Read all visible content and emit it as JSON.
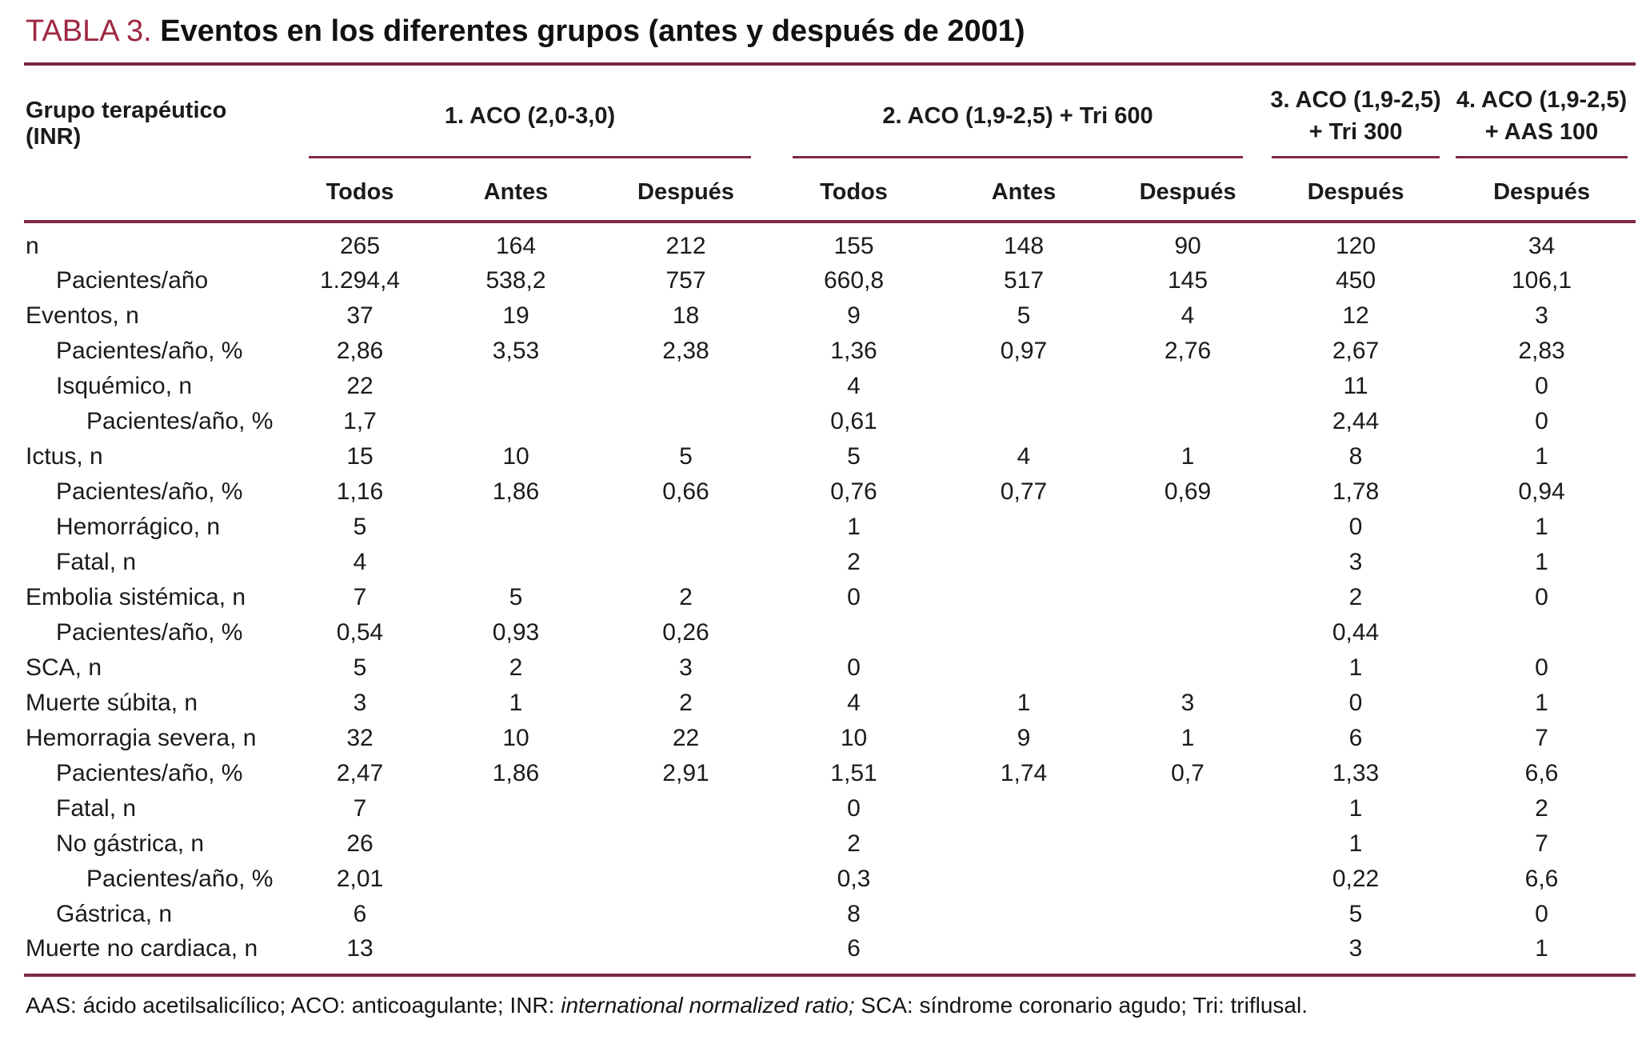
{
  "title": {
    "tag": "TABLA 3.",
    "text": "Eventos en los diferentes grupos (antes y después de 2001)"
  },
  "table": {
    "row_header": "Grupo terapéutico (INR)",
    "groups": [
      {
        "line1": "1. ACO (2,0-3,0)",
        "line2": "",
        "cols": [
          "Todos",
          "Antes",
          "Después"
        ]
      },
      {
        "line1": "2. ACO (1,9-2,5) + Tri 600",
        "line2": "",
        "cols": [
          "Todos",
          "Antes",
          "Después"
        ]
      },
      {
        "line1": "3. ACO (1,9-2,5)",
        "line2": "+ Tri 300",
        "cols": [
          "Después"
        ]
      },
      {
        "line1": "4. ACO (1,9-2,5)",
        "line2": "+ AAS 100",
        "cols": [
          "Después"
        ]
      }
    ],
    "rows": [
      {
        "label": "n",
        "indent": 0,
        "values": [
          "265",
          "164",
          "212",
          "155",
          "148",
          "90",
          "120",
          "34"
        ]
      },
      {
        "label": "Pacientes/año",
        "indent": 1,
        "values": [
          "1.294,4",
          "538,2",
          "757",
          "660,8",
          "517",
          "145",
          "450",
          "106,1"
        ]
      },
      {
        "label": "Eventos, n",
        "indent": 0,
        "values": [
          "37",
          "19",
          "18",
          "9",
          "5",
          "4",
          "12",
          "3"
        ]
      },
      {
        "label": "Pacientes/año, %",
        "indent": 1,
        "values": [
          "2,86",
          "3,53",
          "2,38",
          "1,36",
          "0,97",
          "2,76",
          "2,67",
          "2,83"
        ]
      },
      {
        "label": "Isquémico, n",
        "indent": 1,
        "values": [
          "22",
          "",
          "",
          "4",
          "",
          "",
          "11",
          "0"
        ]
      },
      {
        "label": "Pacientes/año, %",
        "indent": 2,
        "values": [
          "1,7",
          "",
          "",
          "0,61",
          "",
          "",
          "2,44",
          "0"
        ]
      },
      {
        "label": "Ictus, n",
        "indent": 0,
        "values": [
          "15",
          "10",
          "5",
          "5",
          "4",
          "1",
          "8",
          "1"
        ]
      },
      {
        "label": "Pacientes/año, %",
        "indent": 1,
        "values": [
          "1,16",
          "1,86",
          "0,66",
          "0,76",
          "0,77",
          "0,69",
          "1,78",
          "0,94"
        ]
      },
      {
        "label": "Hemorrágico, n",
        "indent": 1,
        "values": [
          "5",
          "",
          "",
          "1",
          "",
          "",
          "0",
          "1"
        ]
      },
      {
        "label": "Fatal, n",
        "indent": 1,
        "values": [
          "4",
          "",
          "",
          "2",
          "",
          "",
          "3",
          "1"
        ]
      },
      {
        "label": "Embolia sistémica, n",
        "indent": 0,
        "values": [
          "7",
          "5",
          "2",
          "0",
          "",
          "",
          "2",
          "0"
        ]
      },
      {
        "label": "Pacientes/año, %",
        "indent": 1,
        "values": [
          "0,54",
          "0,93",
          "0,26",
          "",
          "",
          "",
          "0,44",
          ""
        ]
      },
      {
        "label": "SCA, n",
        "indent": 0,
        "values": [
          "5",
          "2",
          "3",
          "0",
          "",
          "",
          "1",
          "0"
        ]
      },
      {
        "label": "Muerte súbita, n",
        "indent": 0,
        "values": [
          "3",
          "1",
          "2",
          "4",
          "1",
          "3",
          "0",
          "1"
        ]
      },
      {
        "label": "Hemorragia severa, n",
        "indent": 0,
        "values": [
          "32",
          "10",
          "22",
          "10",
          "9",
          "1",
          "6",
          "7"
        ]
      },
      {
        "label": "Pacientes/año, %",
        "indent": 1,
        "values": [
          "2,47",
          "1,86",
          "2,91",
          "1,51",
          "1,74",
          "0,7",
          "1,33",
          "6,6"
        ]
      },
      {
        "label": "Fatal, n",
        "indent": 1,
        "values": [
          "7",
          "",
          "",
          "0",
          "",
          "",
          "1",
          "2"
        ]
      },
      {
        "label": "No gástrica, n",
        "indent": 1,
        "values": [
          "26",
          "",
          "",
          "2",
          "",
          "",
          "1",
          "7"
        ]
      },
      {
        "label": "Pacientes/año, %",
        "indent": 2,
        "values": [
          "2,01",
          "",
          "",
          "0,3",
          "",
          "",
          "0,22",
          "6,6"
        ]
      },
      {
        "label": "Gástrica, n",
        "indent": 1,
        "values": [
          "6",
          "",
          "",
          "8",
          "",
          "",
          "5",
          "0"
        ]
      },
      {
        "label": "Muerte no cardiaca, n",
        "indent": 0,
        "values": [
          "13",
          "",
          "",
          "6",
          "",
          "",
          "3",
          "1"
        ]
      }
    ]
  },
  "footnote": {
    "plain_before": "AAS: ácido acetilsalicílico; ACO: anticoagulante; INR: ",
    "italic": "international normalized ratio;",
    "plain_after": " SCA: síndrome coronario agudo; Tri: triflusal."
  },
  "colors": {
    "accent": "#9e2742",
    "rule": "#7e2a40",
    "text": "#1b1b1b"
  }
}
